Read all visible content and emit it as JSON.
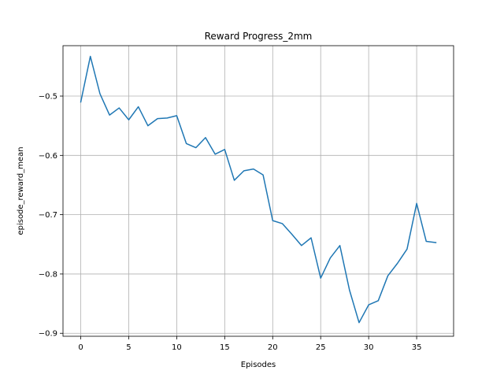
{
  "chart_data": {
    "type": "line",
    "title": "Reward Progress_2mm",
    "xlabel": "Episodes",
    "ylabel": "episode_reward_mean",
    "xlim": [
      -1.85,
      38.85
    ],
    "ylim": [
      -0.905,
      -0.415
    ],
    "xticks": [
      0,
      5,
      10,
      15,
      20,
      25,
      30,
      35
    ],
    "yticks": [
      -0.9,
      -0.8,
      -0.7,
      -0.6,
      -0.5
    ],
    "grid": true,
    "series": [
      {
        "color": "#1f77b4",
        "x": [
          0,
          1,
          2,
          3,
          4,
          5,
          6,
          7,
          8,
          9,
          10,
          11,
          12,
          13,
          14,
          15,
          16,
          17,
          18,
          19,
          20,
          21,
          22,
          23,
          24,
          25,
          26,
          27,
          28,
          29,
          30,
          31,
          32,
          33,
          34,
          35,
          36,
          37
        ],
        "y": [
          -0.51,
          -0.433,
          -0.496,
          -0.532,
          -0.52,
          -0.54,
          -0.518,
          -0.55,
          -0.538,
          -0.537,
          -0.533,
          -0.58,
          -0.587,
          -0.57,
          -0.598,
          -0.59,
          -0.642,
          -0.626,
          -0.623,
          -0.633,
          -0.71,
          -0.715,
          -0.733,
          -0.752,
          -0.739,
          -0.807,
          -0.773,
          -0.752,
          -0.827,
          -0.882,
          -0.852,
          -0.845,
          -0.803,
          -0.782,
          -0.758,
          -0.681,
          -0.745,
          -0.747
        ]
      }
    ]
  }
}
